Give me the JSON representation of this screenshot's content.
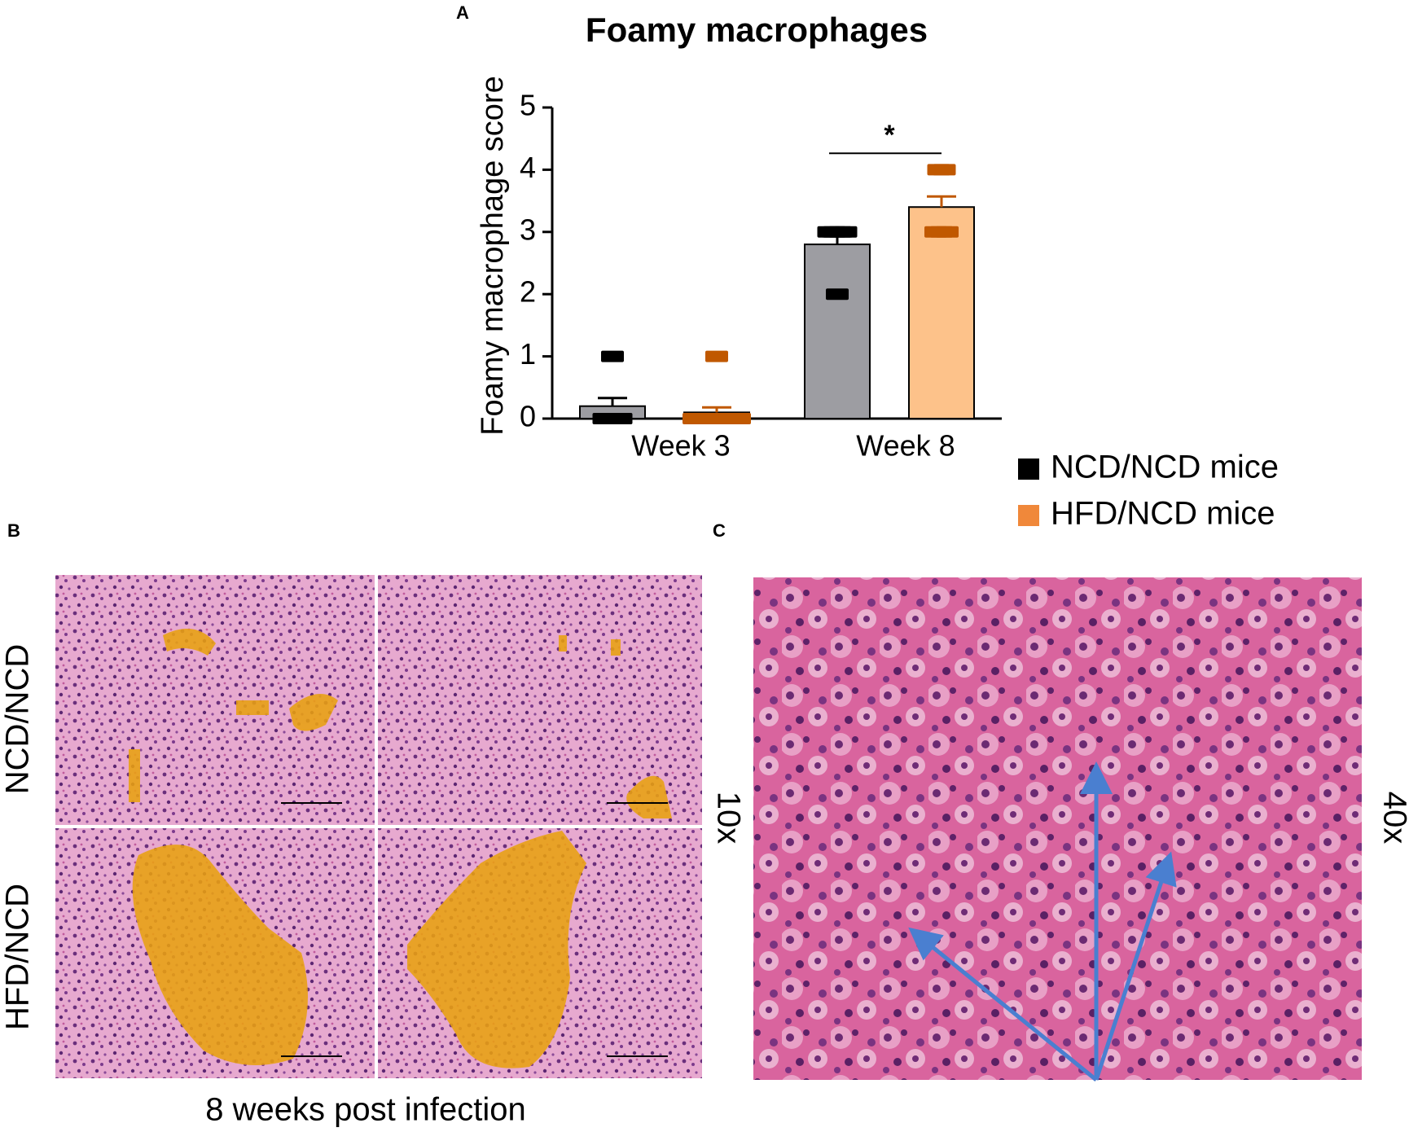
{
  "figure": {
    "panel_labels": [
      "A",
      "B",
      "C"
    ],
    "row_labels": [
      "NCD/NCD",
      "HFD/NCD"
    ],
    "magnifications": [
      "10x",
      "40x"
    ],
    "caption": "8 weeks post infection"
  },
  "chart_data": {
    "type": "bar",
    "title": "Foamy macrophages",
    "ylabel": "Foamy macrophage score",
    "categories": [
      "Week 3",
      "Week 8"
    ],
    "ylim": [
      0,
      5
    ],
    "yticks": [
      0,
      1,
      2,
      3,
      4,
      5
    ],
    "legend": "bottom-right",
    "series": [
      {
        "name": "NCD/NCD mice",
        "color": "#000000",
        "bar_color": "#9d9da2",
        "point_color": "#000000",
        "values": [
          0.2,
          2.8
        ],
        "errors": [
          0.13,
          0.13
        ],
        "points": [
          [
            1,
            0,
            0,
            0,
            0
          ],
          [
            3,
            3,
            3,
            3,
            2
          ]
        ]
      },
      {
        "name": "HFD/NCD mice",
        "color": "#f0883a",
        "bar_color": "#fdc28a",
        "point_color": "#c05800",
        "values": [
          0.1,
          3.4
        ],
        "errors": [
          0.08,
          0.17
        ],
        "points": [
          [
            1,
            0,
            0,
            0,
            0,
            0,
            0,
            0,
            0,
            0
          ],
          [
            4,
            4,
            3,
            3,
            3
          ]
        ]
      }
    ],
    "annotations": [
      {
        "text": "*",
        "category": 1,
        "y": 4.5
      }
    ]
  }
}
